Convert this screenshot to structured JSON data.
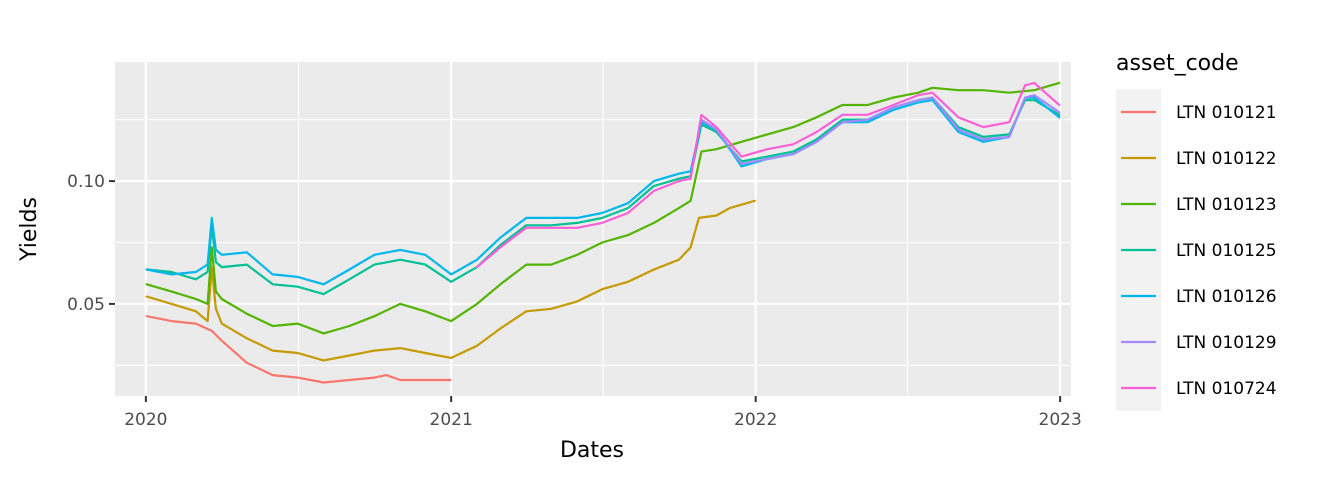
{
  "chart_data": {
    "type": "line",
    "xlabel": "Dates",
    "ylabel": "Yields",
    "x_ticks": [
      "2020",
      "2021",
      "2022",
      "2023"
    ],
    "y_ticks": [
      {
        "value": 0.05,
        "label": "0.05"
      },
      {
        "value": 0.1,
        "label": "0.10"
      }
    ],
    "xlim": [
      "2019-11-25",
      "2023-01-14"
    ],
    "ylim": [
      0.0125,
      0.1485
    ],
    "grid": true,
    "legend": {
      "title": "asset_code",
      "placement": "right"
    },
    "series": [
      {
        "name": "LTN 010121",
        "color": "#F8766D",
        "points": [
          [
            "2020-01-02",
            0.045
          ],
          [
            "2020-02-01",
            0.043
          ],
          [
            "2020-03-01",
            0.042
          ],
          [
            "2020-03-20",
            0.039
          ],
          [
            "2020-04-01",
            0.035
          ],
          [
            "2020-05-01",
            0.026
          ],
          [
            "2020-06-01",
            0.021
          ],
          [
            "2020-07-01",
            0.02
          ],
          [
            "2020-08-01",
            0.018
          ],
          [
            "2020-09-01",
            0.019
          ],
          [
            "2020-10-01",
            0.02
          ],
          [
            "2020-10-15",
            0.021
          ],
          [
            "2020-11-01",
            0.019
          ],
          [
            "2020-12-01",
            0.019
          ],
          [
            "2020-12-31",
            0.019
          ]
        ]
      },
      {
        "name": "LTN 010122",
        "color": "#C49A00",
        "points": [
          [
            "2020-01-02",
            0.053
          ],
          [
            "2020-02-01",
            0.05
          ],
          [
            "2020-03-01",
            0.047
          ],
          [
            "2020-03-15",
            0.043
          ],
          [
            "2020-03-20",
            0.065
          ],
          [
            "2020-03-25",
            0.048
          ],
          [
            "2020-04-01",
            0.042
          ],
          [
            "2020-05-01",
            0.036
          ],
          [
            "2020-06-01",
            0.031
          ],
          [
            "2020-07-01",
            0.03
          ],
          [
            "2020-08-01",
            0.027
          ],
          [
            "2020-09-01",
            0.029
          ],
          [
            "2020-10-01",
            0.031
          ],
          [
            "2020-11-01",
            0.032
          ],
          [
            "2020-12-01",
            0.03
          ],
          [
            "2021-01-01",
            0.028
          ],
          [
            "2021-02-01",
            0.033
          ],
          [
            "2021-03-01",
            0.04
          ],
          [
            "2021-04-01",
            0.047
          ],
          [
            "2021-05-01",
            0.048
          ],
          [
            "2021-06-01",
            0.051
          ],
          [
            "2021-07-01",
            0.056
          ],
          [
            "2021-08-01",
            0.059
          ],
          [
            "2021-09-01",
            0.064
          ],
          [
            "2021-10-01",
            0.068
          ],
          [
            "2021-10-15",
            0.073
          ],
          [
            "2021-10-25",
            0.085
          ],
          [
            "2021-11-15",
            0.086
          ],
          [
            "2021-12-01",
            0.089
          ],
          [
            "2021-12-31",
            0.092
          ]
        ]
      },
      {
        "name": "LTN 010123",
        "color": "#53B400",
        "points": [
          [
            "2020-01-02",
            0.058
          ],
          [
            "2020-02-01",
            0.055
          ],
          [
            "2020-03-01",
            0.052
          ],
          [
            "2020-03-15",
            0.05
          ],
          [
            "2020-03-20",
            0.073
          ],
          [
            "2020-03-25",
            0.055
          ],
          [
            "2020-04-01",
            0.052
          ],
          [
            "2020-05-01",
            0.046
          ],
          [
            "2020-06-01",
            0.041
          ],
          [
            "2020-07-01",
            0.042
          ],
          [
            "2020-08-01",
            0.038
          ],
          [
            "2020-09-01",
            0.041
          ],
          [
            "2020-10-01",
            0.045
          ],
          [
            "2020-11-01",
            0.05
          ],
          [
            "2020-12-01",
            0.047
          ],
          [
            "2021-01-01",
            0.043
          ],
          [
            "2021-02-01",
            0.05
          ],
          [
            "2021-03-01",
            0.058
          ],
          [
            "2021-04-01",
            0.066
          ],
          [
            "2021-05-01",
            0.066
          ],
          [
            "2021-06-01",
            0.07
          ],
          [
            "2021-07-01",
            0.075
          ],
          [
            "2021-08-01",
            0.078
          ],
          [
            "2021-09-01",
            0.083
          ],
          [
            "2021-10-01",
            0.089
          ],
          [
            "2021-10-15",
            0.092
          ],
          [
            "2021-10-28",
            0.112
          ],
          [
            "2021-11-15",
            0.113
          ],
          [
            "2021-12-15",
            0.116
          ],
          [
            "2022-01-15",
            0.119
          ],
          [
            "2022-02-15",
            0.122
          ],
          [
            "2022-03-15",
            0.126
          ],
          [
            "2022-04-15",
            0.131
          ],
          [
            "2022-05-15",
            0.131
          ],
          [
            "2022-06-15",
            0.134
          ],
          [
            "2022-07-15",
            0.136
          ],
          [
            "2022-08-01",
            0.138
          ],
          [
            "2022-09-01",
            0.137
          ],
          [
            "2022-10-01",
            0.137
          ],
          [
            "2022-11-01",
            0.136
          ],
          [
            "2022-12-01",
            0.137
          ],
          [
            "2022-12-31",
            0.14
          ]
        ]
      },
      {
        "name": "LTN 010125",
        "color": "#00C094",
        "points": [
          [
            "2020-01-02",
            0.064
          ],
          [
            "2020-02-01",
            0.063
          ],
          [
            "2020-03-01",
            0.06
          ],
          [
            "2020-03-15",
            0.063
          ],
          [
            "2020-03-20",
            0.082
          ],
          [
            "2020-03-25",
            0.067
          ],
          [
            "2020-04-01",
            0.065
          ],
          [
            "2020-05-01",
            0.066
          ],
          [
            "2020-06-01",
            0.058
          ],
          [
            "2020-07-01",
            0.057
          ],
          [
            "2020-08-01",
            0.054
          ],
          [
            "2020-09-01",
            0.06
          ],
          [
            "2020-10-01",
            0.066
          ],
          [
            "2020-11-01",
            0.068
          ],
          [
            "2020-12-01",
            0.066
          ],
          [
            "2021-01-01",
            0.059
          ],
          [
            "2021-02-01",
            0.065
          ],
          [
            "2021-03-01",
            0.074
          ],
          [
            "2021-04-01",
            0.082
          ],
          [
            "2021-05-01",
            0.082
          ],
          [
            "2021-06-01",
            0.083
          ],
          [
            "2021-07-01",
            0.085
          ],
          [
            "2021-08-01",
            0.089
          ],
          [
            "2021-09-01",
            0.098
          ],
          [
            "2021-10-01",
            0.101
          ],
          [
            "2021-10-15",
            0.102
          ],
          [
            "2021-10-28",
            0.123
          ],
          [
            "2021-11-15",
            0.12
          ],
          [
            "2021-12-15",
            0.108
          ],
          [
            "2022-01-15",
            0.11
          ],
          [
            "2022-02-15",
            0.112
          ],
          [
            "2022-03-15",
            0.117
          ],
          [
            "2022-04-15",
            0.125
          ],
          [
            "2022-05-15",
            0.125
          ],
          [
            "2022-06-15",
            0.13
          ],
          [
            "2022-07-15",
            0.133
          ],
          [
            "2022-08-01",
            0.134
          ],
          [
            "2022-09-01",
            0.122
          ],
          [
            "2022-10-01",
            0.118
          ],
          [
            "2022-11-01",
            0.119
          ],
          [
            "2022-11-20",
            0.133
          ],
          [
            "2022-12-01",
            0.133
          ],
          [
            "2022-12-31",
            0.127
          ]
        ]
      },
      {
        "name": "LTN 010126",
        "color": "#00B6EB",
        "points": [
          [
            "2020-01-02",
            0.064
          ],
          [
            "2020-02-01",
            0.062
          ],
          [
            "2020-03-01",
            0.063
          ],
          [
            "2020-03-15",
            0.066
          ],
          [
            "2020-03-20",
            0.085
          ],
          [
            "2020-03-25",
            0.072
          ],
          [
            "2020-04-01",
            0.07
          ],
          [
            "2020-05-01",
            0.071
          ],
          [
            "2020-06-01",
            0.062
          ],
          [
            "2020-07-01",
            0.061
          ],
          [
            "2020-08-01",
            0.058
          ],
          [
            "2020-09-01",
            0.064
          ],
          [
            "2020-10-01",
            0.07
          ],
          [
            "2020-11-01",
            0.072
          ],
          [
            "2020-12-01",
            0.07
          ],
          [
            "2021-01-01",
            0.062
          ],
          [
            "2021-02-01",
            0.068
          ],
          [
            "2021-03-01",
            0.077
          ],
          [
            "2021-04-01",
            0.085
          ],
          [
            "2021-05-01",
            0.085
          ],
          [
            "2021-06-01",
            0.085
          ],
          [
            "2021-07-01",
            0.087
          ],
          [
            "2021-08-01",
            0.091
          ],
          [
            "2021-09-01",
            0.1
          ],
          [
            "2021-10-01",
            0.103
          ],
          [
            "2021-10-15",
            0.104
          ],
          [
            "2021-10-28",
            0.124
          ],
          [
            "2021-11-15",
            0.121
          ],
          [
            "2021-12-15",
            0.106
          ],
          [
            "2022-01-15",
            0.109
          ],
          [
            "2022-02-15",
            0.111
          ],
          [
            "2022-03-15",
            0.116
          ],
          [
            "2022-04-15",
            0.124
          ],
          [
            "2022-05-15",
            0.124
          ],
          [
            "2022-06-15",
            0.129
          ],
          [
            "2022-07-15",
            0.132
          ],
          [
            "2022-08-01",
            0.133
          ],
          [
            "2022-09-01",
            0.12
          ],
          [
            "2022-10-01",
            0.116
          ],
          [
            "2022-11-01",
            0.118
          ],
          [
            "2022-11-20",
            0.134
          ],
          [
            "2022-12-01",
            0.134
          ],
          [
            "2022-12-31",
            0.126
          ]
        ]
      },
      {
        "name": "LTN 010129",
        "color": "#A58AFF",
        "points": [
          [
            "2021-10-28",
            0.125
          ],
          [
            "2021-11-15",
            0.121
          ],
          [
            "2021-12-15",
            0.107
          ],
          [
            "2022-01-15",
            0.109
          ],
          [
            "2022-02-15",
            0.111
          ],
          [
            "2022-03-15",
            0.116
          ],
          [
            "2022-04-15",
            0.124
          ],
          [
            "2022-05-15",
            0.125
          ],
          [
            "2022-06-15",
            0.13
          ],
          [
            "2022-07-15",
            0.133
          ],
          [
            "2022-08-01",
            0.134
          ],
          [
            "2022-09-01",
            0.121
          ],
          [
            "2022-10-01",
            0.117
          ],
          [
            "2022-11-01",
            0.118
          ],
          [
            "2022-11-20",
            0.134
          ],
          [
            "2022-12-01",
            0.135
          ],
          [
            "2022-12-31",
            0.128
          ]
        ]
      },
      {
        "name": "LTN 010724",
        "color": "#FB61D7",
        "points": [
          [
            "2021-02-01",
            0.065
          ],
          [
            "2021-03-01",
            0.073
          ],
          [
            "2021-04-01",
            0.081
          ],
          [
            "2021-05-01",
            0.081
          ],
          [
            "2021-06-01",
            0.081
          ],
          [
            "2021-07-01",
            0.083
          ],
          [
            "2021-08-01",
            0.087
          ],
          [
            "2021-09-01",
            0.096
          ],
          [
            "2021-10-01",
            0.1
          ],
          [
            "2021-10-15",
            0.101
          ],
          [
            "2021-10-28",
            0.127
          ],
          [
            "2021-11-15",
            0.122
          ],
          [
            "2021-12-15",
            0.11
          ],
          [
            "2022-01-15",
            0.113
          ],
          [
            "2022-02-15",
            0.115
          ],
          [
            "2022-03-15",
            0.12
          ],
          [
            "2022-04-15",
            0.127
          ],
          [
            "2022-05-15",
            0.127
          ],
          [
            "2022-06-15",
            0.131
          ],
          [
            "2022-07-15",
            0.135
          ],
          [
            "2022-08-01",
            0.136
          ],
          [
            "2022-09-01",
            0.126
          ],
          [
            "2022-10-01",
            0.122
          ],
          [
            "2022-11-01",
            0.124
          ],
          [
            "2022-11-20",
            0.139
          ],
          [
            "2022-12-01",
            0.14
          ],
          [
            "2022-12-31",
            0.131
          ]
        ]
      }
    ]
  }
}
